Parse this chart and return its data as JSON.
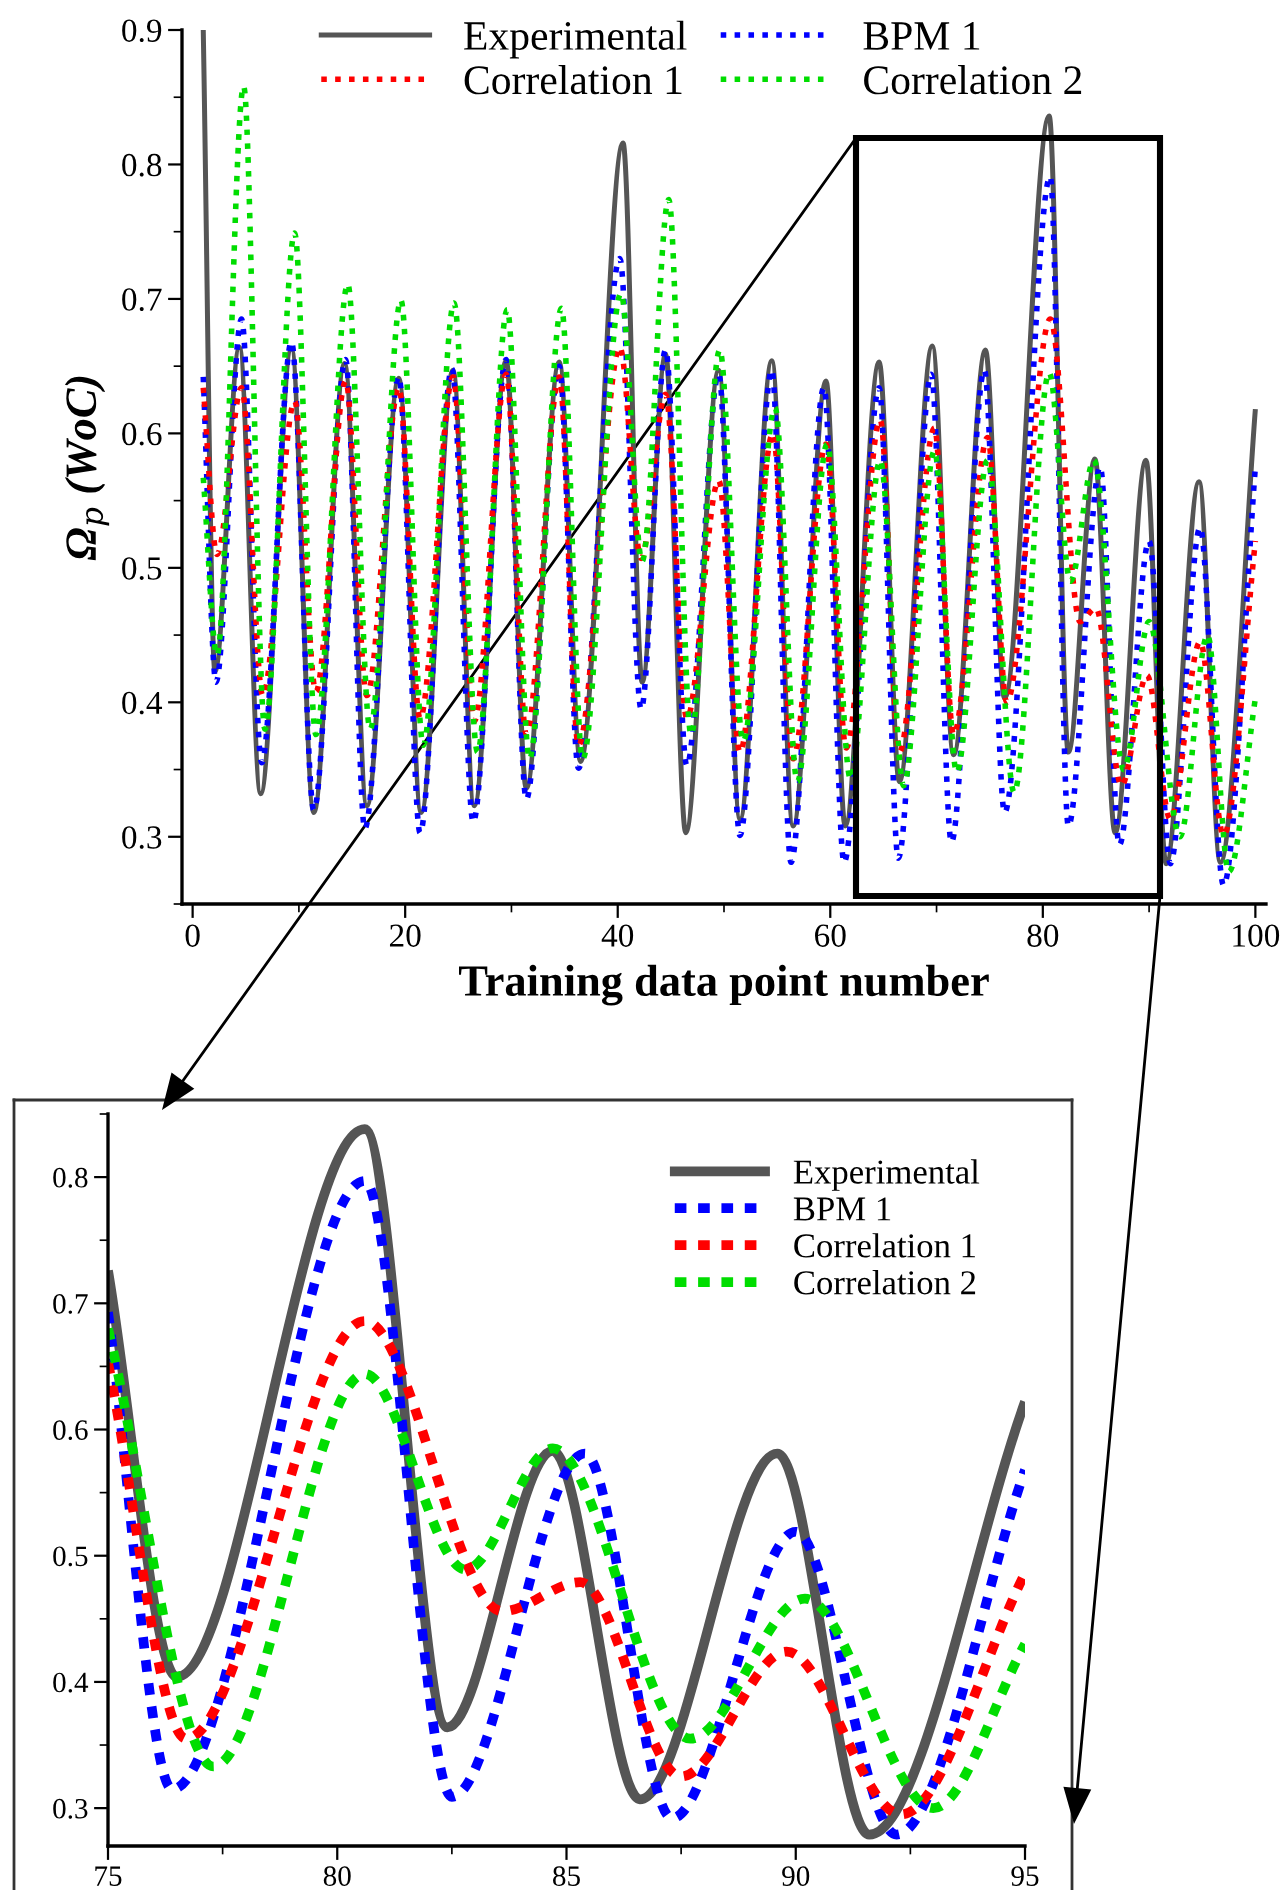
{
  "chart_data": [
    {
      "type": "line",
      "xlabel": "Training data point number",
      "ylabel": "Ω$_{p}$ (WoC)",
      "xlim": [
        -1,
        101
      ],
      "ylim": [
        0.25,
        0.9
      ],
      "xticks": [
        0,
        20,
        40,
        60,
        80,
        100
      ],
      "yticks": [
        0.3,
        0.4,
        0.5,
        0.6,
        0.7,
        0.8,
        0.9
      ],
      "grid": false,
      "legend": "top",
      "series": [
        {
          "name": "Experimental",
          "color": "#555555",
          "line_style": "solid",
          "x": [
            1,
            2.1,
            4.4,
            6.4,
            9.3,
            11.4,
            14.3,
            16.4,
            19.4,
            21.5,
            24.5,
            26.5,
            29.5,
            31.4,
            34.5,
            36.5,
            40.5,
            42.3,
            44.5,
            46.4,
            49.5,
            51.5,
            54.5,
            56.5,
            59.6,
            61.4,
            64.6,
            66.5,
            69.6,
            71.6,
            74.6,
            76.4,
            80.6,
            82.4,
            84.9,
            86.8,
            89.7,
            91.6,
            94.7,
            96.7,
            100
          ],
          "values": [
            0.9,
            0.423,
            0.664,
            0.332,
            0.663,
            0.318,
            0.652,
            0.323,
            0.641,
            0.318,
            0.647,
            0.323,
            0.654,
            0.336,
            0.653,
            0.356,
            0.816,
            0.415,
            0.659,
            0.303,
            0.647,
            0.313,
            0.654,
            0.308,
            0.639,
            0.308,
            0.653,
            0.341,
            0.665,
            0.361,
            0.662,
            0.403,
            0.836,
            0.363,
            0.581,
            0.303,
            0.58,
            0.28,
            0.564,
            0.281,
            0.618
          ]
        },
        {
          "name": "BPM 1",
          "color": "#0000ff",
          "line_style": "dotted",
          "x": [
            1,
            2.2,
            4.6,
            6.5,
            9.3,
            11.4,
            14.4,
            16.2,
            19.4,
            21.4,
            24.4,
            26.4,
            29.5,
            31.4,
            34.5,
            36.3,
            40.2,
            42.2,
            44.5,
            46.5,
            49.5,
            51.5,
            54.5,
            56.3,
            59.4,
            61.3,
            64.6,
            66.4,
            69.5,
            71.4,
            74.5,
            76.4,
            80.7,
            82.4,
            85.4,
            87.2,
            90,
            92,
            94.8,
            97,
            100
          ],
          "values": [
            0.642,
            0.415,
            0.685,
            0.355,
            0.668,
            0.32,
            0.655,
            0.306,
            0.642,
            0.303,
            0.648,
            0.311,
            0.655,
            0.328,
            0.65,
            0.351,
            0.73,
            0.395,
            0.662,
            0.353,
            0.644,
            0.301,
            0.647,
            0.281,
            0.634,
            0.281,
            0.634,
            0.284,
            0.644,
            0.296,
            0.647,
            0.318,
            0.791,
            0.308,
            0.575,
            0.294,
            0.52,
            0.28,
            0.53,
            0.264,
            0.575
          ]
        },
        {
          "name": "Correlation 1",
          "color": "#ff0000",
          "line_style": "dotted",
          "x": [
            1,
            2.3,
            4.6,
            6.6,
            9.6,
            11.6,
            14.4,
            16.4,
            19.4,
            21.4,
            24.5,
            26.5,
            29.5,
            31.4,
            34.5,
            36.3,
            40.2,
            42.2,
            44.5,
            46.5,
            49.5,
            51.5,
            54.6,
            56.5,
            59.6,
            61.5,
            64.7,
            66.5,
            69.8,
            71.6,
            74.8,
            76.6,
            80.7,
            83.5,
            85,
            87.4,
            89.8,
            92,
            94.8,
            97,
            100
          ],
          "values": [
            0.634,
            0.51,
            0.634,
            0.405,
            0.624,
            0.408,
            0.639,
            0.405,
            0.634,
            0.388,
            0.642,
            0.386,
            0.644,
            0.376,
            0.642,
            0.368,
            0.664,
            0.507,
            0.629,
            0.388,
            0.565,
            0.363,
            0.6,
            0.358,
            0.592,
            0.366,
            0.61,
            0.363,
            0.604,
            0.376,
            0.597,
            0.4,
            0.685,
            0.46,
            0.47,
            0.338,
            0.42,
            0.313,
            0.445,
            0.301,
            0.52
          ]
        },
        {
          "name": "Correlation 2",
          "color": "#00dd00",
          "line_style": "dotted",
          "x": [
            1,
            2.3,
            4.8,
            6.8,
            9.6,
            11.6,
            14.6,
            16.7,
            19.6,
            21.7,
            24.6,
            26.8,
            29.6,
            31.7,
            34.7,
            36.7,
            40.3,
            42.3,
            44.8,
            46.9,
            49.6,
            51.8,
            54.8,
            56.9,
            59.7,
            61.9,
            64.7,
            66.9,
            69.8,
            71.9,
            74.8,
            77.3,
            80.6,
            82.6,
            84.8,
            87.6,
            90,
            92.9,
            95.5,
            97.5,
            100
          ],
          "values": [
            0.567,
            0.435,
            0.858,
            0.38,
            0.749,
            0.376,
            0.711,
            0.38,
            0.699,
            0.368,
            0.697,
            0.363,
            0.692,
            0.358,
            0.693,
            0.358,
            0.704,
            0.505,
            0.774,
            0.376,
            0.662,
            0.371,
            0.619,
            0.341,
            0.592,
            0.343,
            0.58,
            0.338,
            0.587,
            0.348,
            0.58,
            0.333,
            0.645,
            0.49,
            0.58,
            0.35,
            0.46,
            0.3,
            0.45,
            0.274,
            0.403
          ]
        }
      ]
    },
    {
      "type": "line",
      "xlim": [
        75,
        95
      ],
      "ylim": [
        0.27,
        0.85
      ],
      "xticks": [
        75,
        80,
        85,
        90,
        95
      ],
      "yticks": [
        0.3,
        0.4,
        0.5,
        0.6,
        0.7,
        0.8
      ],
      "grid": false,
      "legend": "top right",
      "series": [
        {
          "name": "Experimental",
          "color": "#555555",
          "line_style": "solid",
          "x": [
            75,
            76.5,
            80.6,
            82.4,
            84.7,
            86.6,
            89.6,
            91.6,
            95
          ],
          "values": [
            0.726,
            0.404,
            0.838,
            0.364,
            0.583,
            0.307,
            0.581,
            0.279,
            0.622
          ]
        },
        {
          "name": "BPM 1",
          "color": "#0000ff",
          "line_style": "dashed",
          "x": [
            75,
            76.4,
            80.6,
            82.5,
            85.4,
            87.3,
            90,
            92.2,
            95
          ],
          "values": [
            0.693,
            0.315,
            0.797,
            0.309,
            0.581,
            0.292,
            0.519,
            0.279,
            0.568
          ]
        },
        {
          "name": "Correlation 1",
          "color": "#ff0000",
          "line_style": "dashed",
          "x": [
            75,
            76.7,
            80.6,
            83.6,
            85.3,
            87.5,
            89.8,
            92.3,
            95
          ],
          "values": [
            0.653,
            0.355,
            0.686,
            0.456,
            0.479,
            0.325,
            0.424,
            0.295,
            0.486
          ]
        },
        {
          "name": "Correlation 2",
          "color": "#00dd00",
          "line_style": "dashed",
          "x": [
            75,
            77.3,
            80.6,
            82.8,
            84.7,
            87.7,
            90.2,
            93,
            95
          ],
          "values": [
            0.68,
            0.333,
            0.644,
            0.489,
            0.585,
            0.355,
            0.466,
            0.3,
            0.43
          ]
        }
      ]
    }
  ]
}
